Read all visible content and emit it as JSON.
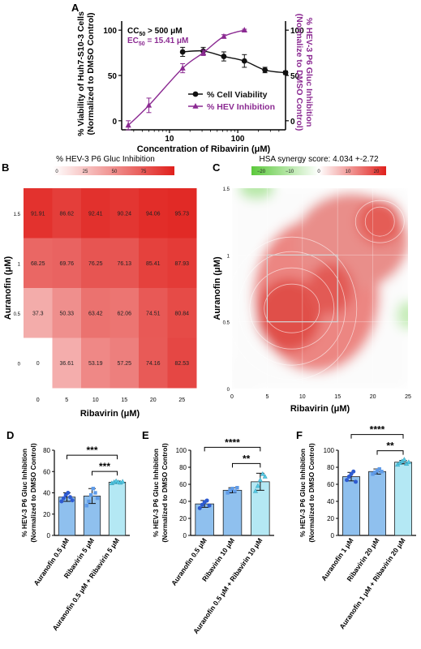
{
  "panel_labels": {
    "A": "A",
    "B": "B",
    "C": "C",
    "D": "D",
    "E": "E",
    "F": "F"
  },
  "colors": {
    "viability": "#111111",
    "hev": "#8b2a92",
    "heat_low": "#ffffff",
    "heat_high": "#e0201c",
    "syn_neg": "#6ccf4a",
    "syn_pos": "#e0201c",
    "bar_light": "#b4e8f4",
    "bar_mid": "#8fc0ee",
    "bar_dark": "#3f6fd8",
    "dot_dark": "#2e5bd1",
    "dot_mid": "#5f9be8",
    "dot_light": "#54c9e4"
  },
  "chart_data": [
    {
      "id": "A",
      "type": "line",
      "xlabel": "Concentration of Ribavirin (μM)",
      "ylabel_left": [
        "% Viability of Huh7-S10-3 Cells",
        "(Normalized to DMSO Control)"
      ],
      "ylabel_right": [
        "% HEV-3 P6 Gluc Inhibition",
        "(Normalize to DMSO Control)"
      ],
      "xscale": "log",
      "xlim": [
        2,
        500
      ],
      "xticks": [
        10,
        100
      ],
      "ylim": [
        -10,
        110
      ],
      "yticks": [
        0,
        50,
        100
      ],
      "annotations": {
        "cc50_pre": "CC",
        "cc50_sub": "50",
        "cc50_post": " > 500 μM",
        "ec50_pre": "EC",
        "ec50_sub": "50",
        "ec50_post": " = 15.41 μM"
      },
      "legend_position": "bottom-right",
      "series": [
        {
          "name": "% Cell Viability",
          "marker": "circle",
          "x": [
            15.6,
            31.25,
            62.5,
            125,
            250,
            500
          ],
          "y": [
            76,
            77,
            71,
            66,
            56,
            53
          ],
          "err": [
            5,
            4,
            5,
            7,
            3,
            2
          ]
        },
        {
          "name": "% HEV Inhibition",
          "marker": "triangle",
          "x": [
            2.5,
            5,
            15.6,
            31.25,
            62.5,
            125
          ],
          "y": [
            -5,
            17,
            58,
            75,
            93,
            100
          ],
          "err": [
            5,
            8,
            5,
            3,
            2,
            1
          ]
        }
      ]
    },
    {
      "id": "B",
      "type": "heatmap",
      "title": "% HEV-3 P6 Gluc Inhibition",
      "colorbar_ticks": [
        "0",
        "25",
        "50",
        "75"
      ],
      "xlabel": "Ribavirin (μM)",
      "ylabel": "Auranofin (μM)",
      "x_ticks": [
        "0",
        "5",
        "10",
        "15",
        "20",
        "25"
      ],
      "y_ticks": [
        "1.5",
        "1",
        "0.5",
        "0"
      ],
      "values": [
        [
          "91.91",
          "86.62",
          "92.41",
          "90.24",
          "94.06",
          "95.73"
        ],
        [
          "68.25",
          "69.76",
          "76.25",
          "76.13",
          "85.41",
          "87.93"
        ],
        [
          "37.3",
          "50.33",
          "63.42",
          "62.06",
          "74.51",
          "80.84"
        ],
        [
          "0",
          "36.61",
          "53.19",
          "57.25",
          "74.16",
          "82.53"
        ]
      ]
    },
    {
      "id": "C",
      "type": "heatmap",
      "title": "HSA synergy score: 4.034 +-2.72",
      "colorbar_ticks": [
        "−20",
        "−10",
        "0",
        "10",
        "20"
      ],
      "xlabel": "Ribavirin (μM)",
      "ylabel": "Auranofin (μM)",
      "x_ticks": [
        "0",
        "5",
        "10",
        "15",
        "20",
        "25"
      ],
      "y_ticks": [
        "0",
        "0.5",
        "1",
        "1.5"
      ],
      "highlight_box": {
        "x": [
          5,
          15
        ],
        "y": [
          0.5,
          1
        ]
      }
    },
    {
      "id": "D",
      "type": "bar",
      "ylabel": [
        "% HEV-3 P6 Gluc Inhibition",
        "(Normalized to DMSO Control)"
      ],
      "ylim": [
        0,
        80
      ],
      "yticks": [
        0,
        20,
        40,
        60,
        80
      ],
      "categories": [
        "Auranofin 0.5 μM",
        "Ribavirin 5 μM",
        "Auranofin 0.5 μM + Ribavirin 5 μM"
      ],
      "values": [
        36,
        37,
        50
      ],
      "errors": [
        4,
        7,
        1
      ],
      "points": [
        [
          32,
          35,
          38,
          40,
          36,
          33
        ],
        [
          28,
          32,
          38,
          44,
          40,
          35
        ],
        [
          49,
          50,
          51,
          50,
          49.5,
          50.5
        ]
      ],
      "significance": [
        {
          "pair": [
            0,
            2
          ],
          "label": "***"
        },
        {
          "pair": [
            1,
            2
          ],
          "label": "***"
        }
      ]
    },
    {
      "id": "E",
      "type": "bar",
      "ylabel": [
        "% HEV-3 P6 Gluc Inhibition",
        "(Normalized to DMSO Control)"
      ],
      "ylim": [
        0,
        100
      ],
      "yticks": [
        0,
        20,
        40,
        60,
        80,
        100
      ],
      "categories": [
        "Auranofin 0.5 μM",
        "Ribavirin 10 μM",
        "Auranofin 0.5 μM + Ribavirin 10 μM"
      ],
      "values": [
        37,
        53,
        63
      ],
      "errors": [
        4,
        3,
        10
      ],
      "points": [
        [
          32,
          36,
          39,
          41,
          35
        ],
        [
          50,
          53,
          55,
          52,
          56
        ],
        [
          52,
          58,
          65,
          72,
          69
        ]
      ],
      "significance": [
        {
          "pair": [
            0,
            2
          ],
          "label": "****"
        },
        {
          "pair": [
            1,
            2
          ],
          "label": "**"
        }
      ]
    },
    {
      "id": "F",
      "type": "bar",
      "ylabel": [
        "% HEV-3 P6 Gluc Inhibition",
        "(Normalized to DMSO Control)"
      ],
      "ylim": [
        0,
        100
      ],
      "yticks": [
        0,
        20,
        40,
        60,
        80,
        100
      ],
      "categories": [
        "Auranofin 1 μM",
        "Ribavirin 20 μM",
        "Auranofin 1 μM + Ribavirin 20 μM"
      ],
      "values": [
        69,
        75,
        86
      ],
      "errors": [
        5,
        3,
        2
      ],
      "points": [
        [
          65,
          69,
          72,
          75,
          63
        ],
        [
          72,
          74,
          76,
          78,
          75
        ],
        [
          83,
          85,
          87,
          89,
          84,
          86
        ]
      ],
      "significance": [
        {
          "pair": [
            0,
            2
          ],
          "label": "****"
        },
        {
          "pair": [
            1,
            2
          ],
          "label": "**"
        }
      ]
    }
  ]
}
